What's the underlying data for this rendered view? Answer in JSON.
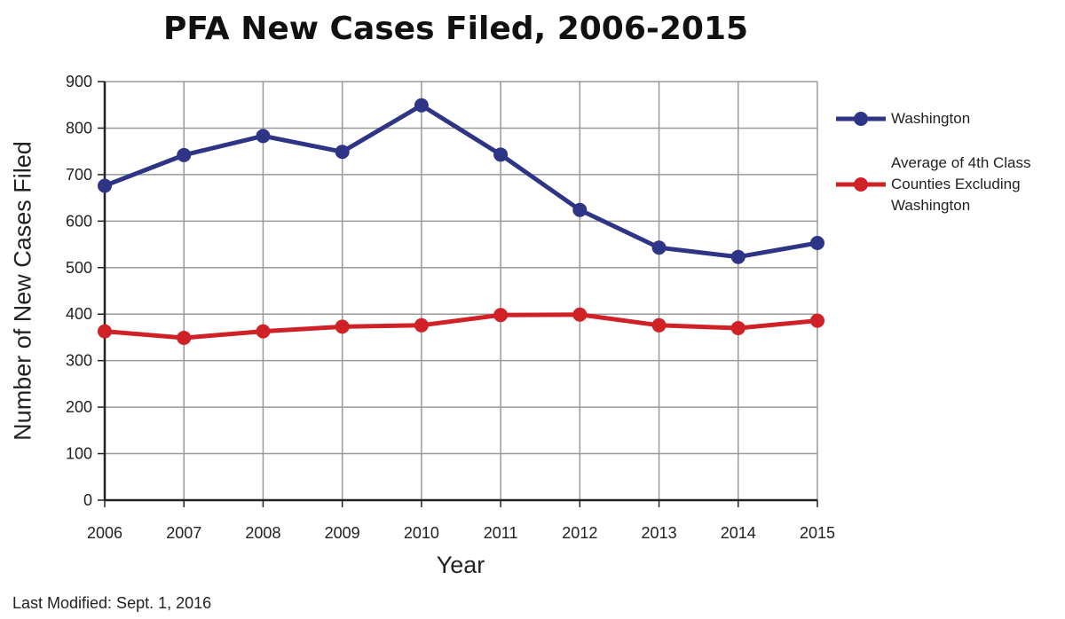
{
  "chart_data": {
    "type": "line",
    "title": "PFA New Cases Filed, 2006-2015",
    "xlabel": "Year",
    "ylabel": "Number of New Cases Filed",
    "x": [
      "2006",
      "2007",
      "2008",
      "2009",
      "2010",
      "2011",
      "2012",
      "2013",
      "2014",
      "2015"
    ],
    "ylim": [
      0,
      900
    ],
    "yticks": [
      "0",
      "100",
      "200",
      "300",
      "400",
      "500",
      "600",
      "700",
      "800",
      "900"
    ],
    "grid": true,
    "legend_position": "right",
    "series": [
      {
        "name": "Washington",
        "color": "#2e3486",
        "values": [
          676,
          742,
          783,
          749,
          849,
          743,
          624,
          543,
          523,
          553
        ]
      },
      {
        "name": "Average of 4th Class Counties Excluding Washington",
        "color": "#d02127",
        "values": [
          363,
          349,
          363,
          373,
          376,
          398,
          399,
          376,
          370,
          386
        ]
      }
    ],
    "legend": [
      {
        "lines": [
          "Washington"
        ]
      },
      {
        "lines": [
          "Average of 4th Class",
          "Counties Excluding",
          "Washington"
        ]
      }
    ]
  },
  "footer": "Last Modified: Sept. 1, 2016"
}
